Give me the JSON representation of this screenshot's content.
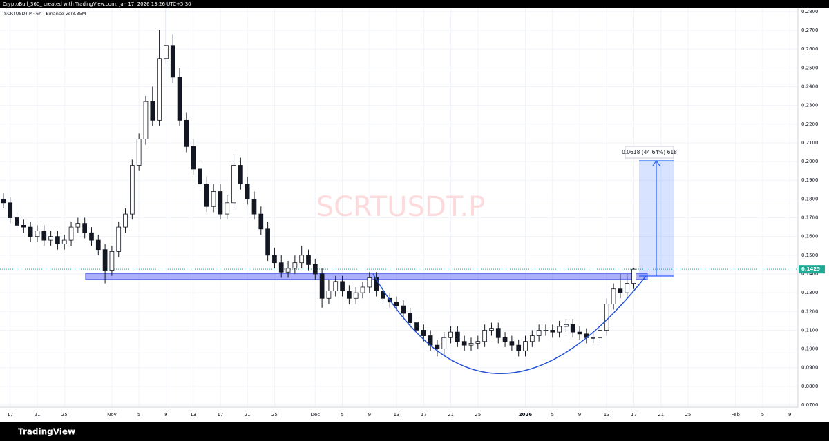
{
  "chart_data": {
    "type": "candlestick",
    "header": "CryptoBull_360_ created with TradingView.com, Jan 17, 2026 13:26 UTC+5:30",
    "symbol_info": "SCRTUSDT.P · 6h · Binance  Vol8.35M",
    "watermark": "SCRTUSDT.P",
    "measure_label": "0.0618 (44.64%) 618",
    "footer": "TradingView",
    "up_color": "#ffffff",
    "down_color": "#131722",
    "grid": true,
    "last_price": {
      "value": 0.1425,
      "label": "0.1425"
    },
    "last_price_color": "#22ab94",
    "xlim": [
      -1.5,
      116.2
    ],
    "ylim": [
      0.0689,
      0.2818
    ],
    "xticks": [
      {
        "value": 0,
        "label": "17"
      },
      {
        "value": 4,
        "label": "21"
      },
      {
        "value": 8,
        "label": "25"
      },
      {
        "value": 15,
        "label": "Nov"
      },
      {
        "value": 19,
        "label": "5"
      },
      {
        "value": 23,
        "label": "9"
      },
      {
        "value": 27,
        "label": "13"
      },
      {
        "value": 31,
        "label": "17"
      },
      {
        "value": 35,
        "label": "21"
      },
      {
        "value": 39,
        "label": "25"
      },
      {
        "value": 45,
        "label": "Dec"
      },
      {
        "value": 49,
        "label": "5"
      },
      {
        "value": 53,
        "label": "9"
      },
      {
        "value": 57,
        "label": "13"
      },
      {
        "value": 61,
        "label": "17"
      },
      {
        "value": 65,
        "label": "21"
      },
      {
        "value": 69,
        "label": "25"
      },
      {
        "value": 76,
        "label": "2026"
      },
      {
        "value": 80,
        "label": "5"
      },
      {
        "value": 84,
        "label": "9"
      },
      {
        "value": 88,
        "label": "13"
      },
      {
        "value": 92,
        "label": "17"
      },
      {
        "value": 96,
        "label": "21"
      },
      {
        "value": 100,
        "label": "25"
      },
      {
        "value": 107,
        "label": "Feb"
      },
      {
        "value": 111,
        "label": "5"
      },
      {
        "value": 115,
        "label": "9"
      }
    ],
    "yticks": [
      {
        "value": 0.07,
        "label": "0.0700"
      },
      {
        "value": 0.08,
        "label": "0.0800"
      },
      {
        "value": 0.09,
        "label": "0.0900"
      },
      {
        "value": 0.1,
        "label": "0.1000"
      },
      {
        "value": 0.11,
        "label": "0.1100"
      },
      {
        "value": 0.12,
        "label": "0.1200"
      },
      {
        "value": 0.13,
        "label": "0.1300"
      },
      {
        "value": 0.14,
        "label": "0.1400"
      },
      {
        "value": 0.15,
        "label": "0.1500"
      },
      {
        "value": 0.16,
        "label": "0.1600"
      },
      {
        "value": 0.17,
        "label": "0.1700"
      },
      {
        "value": 0.18,
        "label": "0.1800"
      },
      {
        "value": 0.19,
        "label": "0.1900"
      },
      {
        "value": 0.2,
        "label": "0.2000"
      },
      {
        "value": 0.21,
        "label": "0.2100"
      },
      {
        "value": 0.22,
        "label": "0.2200"
      },
      {
        "value": 0.23,
        "label": "0.2300"
      },
      {
        "value": 0.24,
        "label": "0.2400"
      },
      {
        "value": 0.25,
        "label": "0.2500"
      },
      {
        "value": 0.26,
        "label": "0.2600"
      },
      {
        "value": 0.27,
        "label": "0.2700"
      },
      {
        "value": 0.28,
        "label": "0.2800"
      }
    ],
    "x": [
      -1,
      0,
      1,
      2,
      3,
      4,
      5,
      6,
      7,
      8,
      9,
      10,
      11,
      12,
      13,
      14,
      15,
      16,
      17,
      18,
      19,
      20,
      21,
      22,
      23,
      24,
      25,
      26,
      27,
      28,
      29,
      30,
      31,
      32,
      33,
      34,
      35,
      36,
      37,
      38,
      39,
      40,
      41,
      42,
      43,
      44,
      45,
      46,
      47,
      48,
      49,
      50,
      51,
      52,
      53,
      54,
      55,
      56,
      57,
      58,
      59,
      60,
      61,
      62,
      63,
      64,
      65,
      66,
      67,
      68,
      69,
      70,
      71,
      72,
      73,
      74,
      75,
      76,
      77,
      78,
      79,
      80,
      81,
      82,
      83,
      84,
      85,
      86,
      87,
      88,
      89,
      90,
      91,
      92
    ],
    "open": [
      0.18,
      0.178,
      0.17,
      0.166,
      0.165,
      0.16,
      0.163,
      0.158,
      0.16,
      0.156,
      0.158,
      0.165,
      0.167,
      0.162,
      0.158,
      0.153,
      0.142,
      0.152,
      0.165,
      0.172,
      0.198,
      0.212,
      0.232,
      0.222,
      0.255,
      0.262,
      0.245,
      0.222,
      0.208,
      0.196,
      0.188,
      0.176,
      0.184,
      0.172,
      0.178,
      0.198,
      0.188,
      0.18,
      0.172,
      0.164,
      0.15,
      0.146,
      0.141,
      0.143,
      0.146,
      0.15,
      0.145,
      0.14,
      0.127,
      0.131,
      0.136,
      0.131,
      0.127,
      0.13,
      0.133,
      0.138,
      0.131,
      0.127,
      0.125,
      0.123,
      0.119,
      0.114,
      0.11,
      0.107,
      0.102,
      0.1,
      0.106,
      0.109,
      0.104,
      0.102,
      0.103,
      0.104,
      0.11,
      0.111,
      0.106,
      0.104,
      0.102,
      0.099,
      0.104,
      0.107,
      0.11,
      0.11,
      0.109,
      0.112,
      0.113,
      0.109,
      0.108,
      0.106,
      0.106,
      0.11,
      0.124,
      0.132,
      0.13,
      0.135
    ],
    "high": [
      0.183,
      0.181,
      0.173,
      0.169,
      0.168,
      0.166,
      0.166,
      0.163,
      0.163,
      0.161,
      0.168,
      0.17,
      0.17,
      0.165,
      0.161,
      0.156,
      0.155,
      0.168,
      0.175,
      0.201,
      0.215,
      0.235,
      0.24,
      0.27,
      0.292,
      0.268,
      0.25,
      0.226,
      0.212,
      0.2,
      0.192,
      0.188,
      0.188,
      0.182,
      0.204,
      0.202,
      0.192,
      0.184,
      0.176,
      0.168,
      0.154,
      0.15,
      0.147,
      0.15,
      0.155,
      0.153,
      0.148,
      0.143,
      0.137,
      0.139,
      0.139,
      0.134,
      0.133,
      0.136,
      0.141,
      0.141,
      0.134,
      0.13,
      0.128,
      0.126,
      0.122,
      0.117,
      0.113,
      0.11,
      0.105,
      0.109,
      0.112,
      0.112,
      0.107,
      0.106,
      0.107,
      0.113,
      0.114,
      0.114,
      0.109,
      0.107,
      0.105,
      0.107,
      0.11,
      0.113,
      0.113,
      0.113,
      0.115,
      0.116,
      0.116,
      0.112,
      0.111,
      0.109,
      0.113,
      0.127,
      0.135,
      0.14,
      0.14,
      0.143
    ],
    "low": [
      0.175,
      0.167,
      0.163,
      0.162,
      0.157,
      0.157,
      0.155,
      0.155,
      0.153,
      0.153,
      0.155,
      0.162,
      0.159,
      0.155,
      0.15,
      0.135,
      0.139,
      0.149,
      0.162,
      0.169,
      0.195,
      0.209,
      0.219,
      0.219,
      0.252,
      0.242,
      0.219,
      0.205,
      0.193,
      0.185,
      0.173,
      0.173,
      0.169,
      0.169,
      0.175,
      0.185,
      0.177,
      0.169,
      0.161,
      0.147,
      0.143,
      0.138,
      0.138,
      0.14,
      0.143,
      0.142,
      0.137,
      0.122,
      0.124,
      0.128,
      0.128,
      0.124,
      0.124,
      0.127,
      0.13,
      0.128,
      0.124,
      0.122,
      0.12,
      0.116,
      0.111,
      0.107,
      0.104,
      0.099,
      0.096,
      0.097,
      0.103,
      0.101,
      0.099,
      0.099,
      0.1,
      0.101,
      0.107,
      0.103,
      0.101,
      0.099,
      0.096,
      0.096,
      0.101,
      0.104,
      0.107,
      0.106,
      0.106,
      0.109,
      0.106,
      0.105,
      0.103,
      0.103,
      0.103,
      0.107,
      0.121,
      0.127,
      0.127,
      0.132
    ],
    "close": [
      0.178,
      0.17,
      0.166,
      0.165,
      0.16,
      0.163,
      0.158,
      0.16,
      0.156,
      0.158,
      0.165,
      0.167,
      0.162,
      0.158,
      0.153,
      0.142,
      0.152,
      0.165,
      0.172,
      0.198,
      0.212,
      0.232,
      0.222,
      0.255,
      0.262,
      0.245,
      0.222,
      0.208,
      0.196,
      0.188,
      0.176,
      0.184,
      0.172,
      0.178,
      0.198,
      0.188,
      0.18,
      0.172,
      0.164,
      0.15,
      0.146,
      0.141,
      0.143,
      0.146,
      0.15,
      0.145,
      0.14,
      0.127,
      0.131,
      0.136,
      0.131,
      0.127,
      0.13,
      0.133,
      0.138,
      0.131,
      0.127,
      0.125,
      0.123,
      0.119,
      0.114,
      0.11,
      0.107,
      0.102,
      0.1,
      0.106,
      0.109,
      0.104,
      0.102,
      0.103,
      0.104,
      0.11,
      0.111,
      0.106,
      0.104,
      0.102,
      0.099,
      0.104,
      0.107,
      0.11,
      0.11,
      0.109,
      0.112,
      0.113,
      0.109,
      0.108,
      0.106,
      0.106,
      0.11,
      0.124,
      0.132,
      0.13,
      0.135,
      0.1425
    ]
  }
}
